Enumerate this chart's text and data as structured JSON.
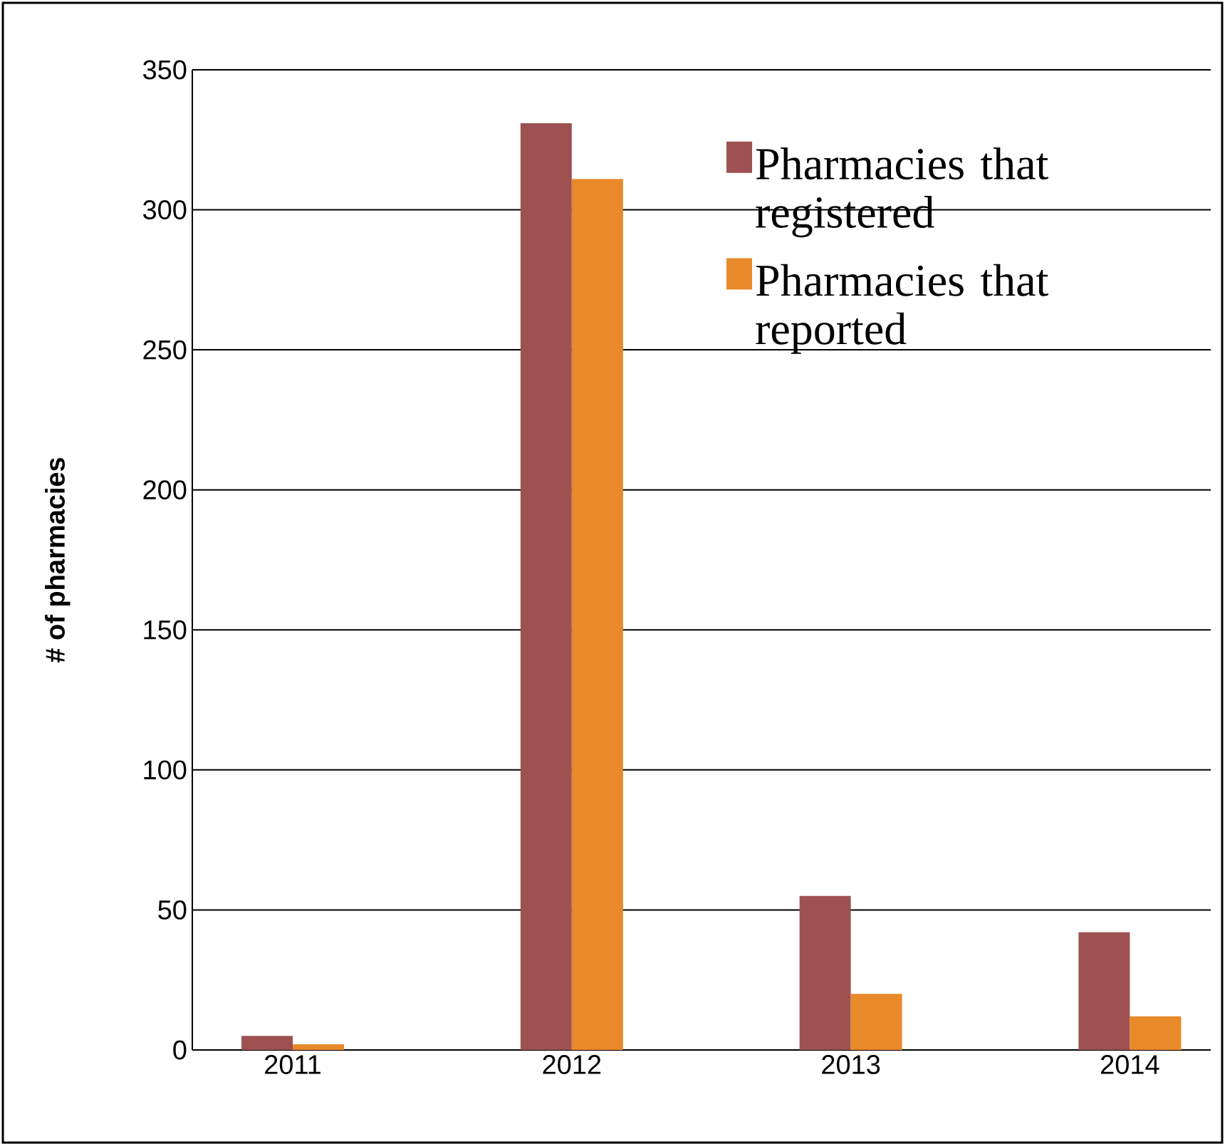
{
  "chart_data": {
    "type": "bar",
    "ylabel": "# of pharmacies",
    "categories": [
      "2011",
      "2012",
      "2013",
      "2014"
    ],
    "series": [
      {
        "name": "Pharmacies that registered",
        "color": "#9e5151",
        "values": [
          5,
          331,
          55,
          42
        ]
      },
      {
        "name": "Pharmacies that reported",
        "color": "#e8892a",
        "values": [
          2,
          311,
          20,
          12
        ]
      }
    ],
    "ylim": [
      0,
      350
    ],
    "yticks": [
      0,
      50,
      100,
      150,
      200,
      250,
      300,
      350
    ],
    "grid": "y",
    "legend": "top right"
  }
}
